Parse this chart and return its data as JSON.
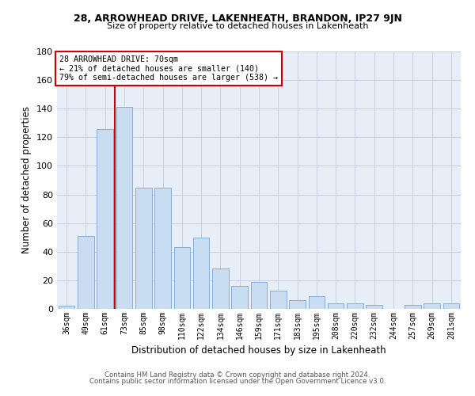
{
  "title1": "28, ARROWHEAD DRIVE, LAKENHEATH, BRANDON, IP27 9JN",
  "title2": "Size of property relative to detached houses in Lakenheath",
  "xlabel": "Distribution of detached houses by size in Lakenheath",
  "ylabel": "Number of detached properties",
  "categories": [
    "36sqm",
    "49sqm",
    "61sqm",
    "73sqm",
    "85sqm",
    "98sqm",
    "110sqm",
    "122sqm",
    "134sqm",
    "146sqm",
    "159sqm",
    "171sqm",
    "183sqm",
    "195sqm",
    "208sqm",
    "220sqm",
    "232sqm",
    "244sqm",
    "257sqm",
    "269sqm",
    "281sqm"
  ],
  "values": [
    2,
    51,
    126,
    141,
    85,
    85,
    43,
    50,
    28,
    16,
    19,
    13,
    6,
    9,
    4,
    4,
    3,
    0,
    3,
    4,
    4
  ],
  "bar_color": "#c9ddf2",
  "bar_edge_color": "#88aed4",
  "grid_color": "#c8cfe0",
  "background_color": "#e8eef8",
  "vline_color": "#cc0000",
  "vline_x": 2.5,
  "annotation_line1": "28 ARROWHEAD DRIVE: 70sqm",
  "annotation_line2": "← 21% of detached houses are smaller (140)",
  "annotation_line3": "79% of semi-detached houses are larger (538) →",
  "annotation_box_color": "#ffffff",
  "annotation_box_edge": "#cc0000",
  "footer1": "Contains HM Land Registry data © Crown copyright and database right 2024.",
  "footer2": "Contains public sector information licensed under the Open Government Licence v3.0.",
  "ylim": [
    0,
    180
  ],
  "yticks": [
    0,
    20,
    40,
    60,
    80,
    100,
    120,
    140,
    160,
    180
  ]
}
